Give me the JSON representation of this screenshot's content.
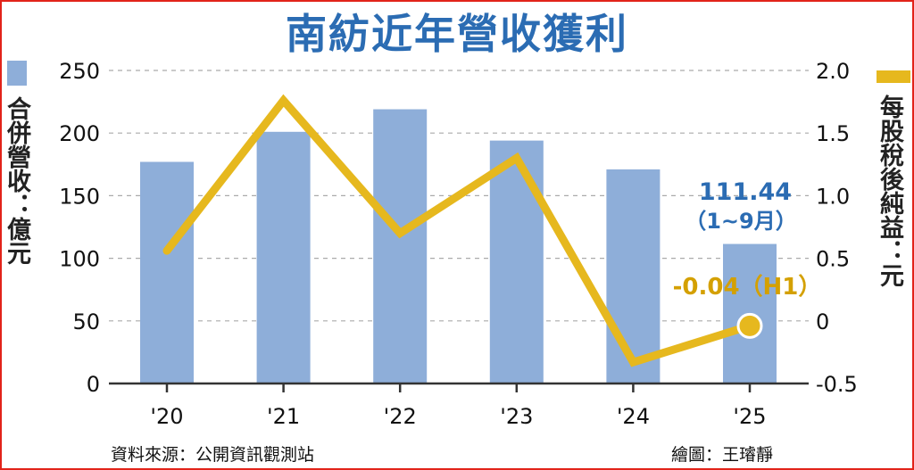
{
  "title": "南紡近年營收獲利",
  "left_axis_label": "合併營收：億元",
  "right_axis_label": "每股稅後純益：元",
  "source": "資料來源：公開資訊觀測站",
  "credit": "繪圖：王璿靜",
  "colors": {
    "title": "#2b6cb3",
    "bar": "#8eaed9",
    "line": "#e6b81e",
    "annotation_blue": "#2b6cb3",
    "annotation_gold": "#d4a000"
  },
  "chart_data": {
    "type": "bar",
    "categories": [
      "'20",
      "'21",
      "'22",
      "'23",
      "'24",
      "'25"
    ],
    "series": [
      {
        "name": "合併營收",
        "type": "bar",
        "axis": "left",
        "values": [
          177,
          201,
          219,
          194,
          171,
          111.44
        ]
      },
      {
        "name": "每股稅後純益",
        "type": "line",
        "axis": "right",
        "values": [
          0.56,
          1.76,
          0.7,
          1.3,
          -0.33,
          -0.04
        ]
      }
    ],
    "left_axis": {
      "label": "合併營收：億元",
      "ylim": [
        0,
        250
      ],
      "ticks": [
        0,
        50,
        100,
        150,
        200,
        250
      ]
    },
    "right_axis": {
      "label": "每股稅後純益：元",
      "ylim": [
        -0.5,
        2.0
      ],
      "ticks": [
        "-0.5",
        "0",
        "0.5",
        "1.0",
        "1.5",
        "2.0"
      ]
    },
    "annotations": [
      {
        "series": "合併營收",
        "index": 5,
        "text": "111.44",
        "subtext": "（1~9月）"
      },
      {
        "series": "每股稅後純益",
        "index": 5,
        "text": "-0.04（H1）"
      }
    ],
    "grid": true
  }
}
